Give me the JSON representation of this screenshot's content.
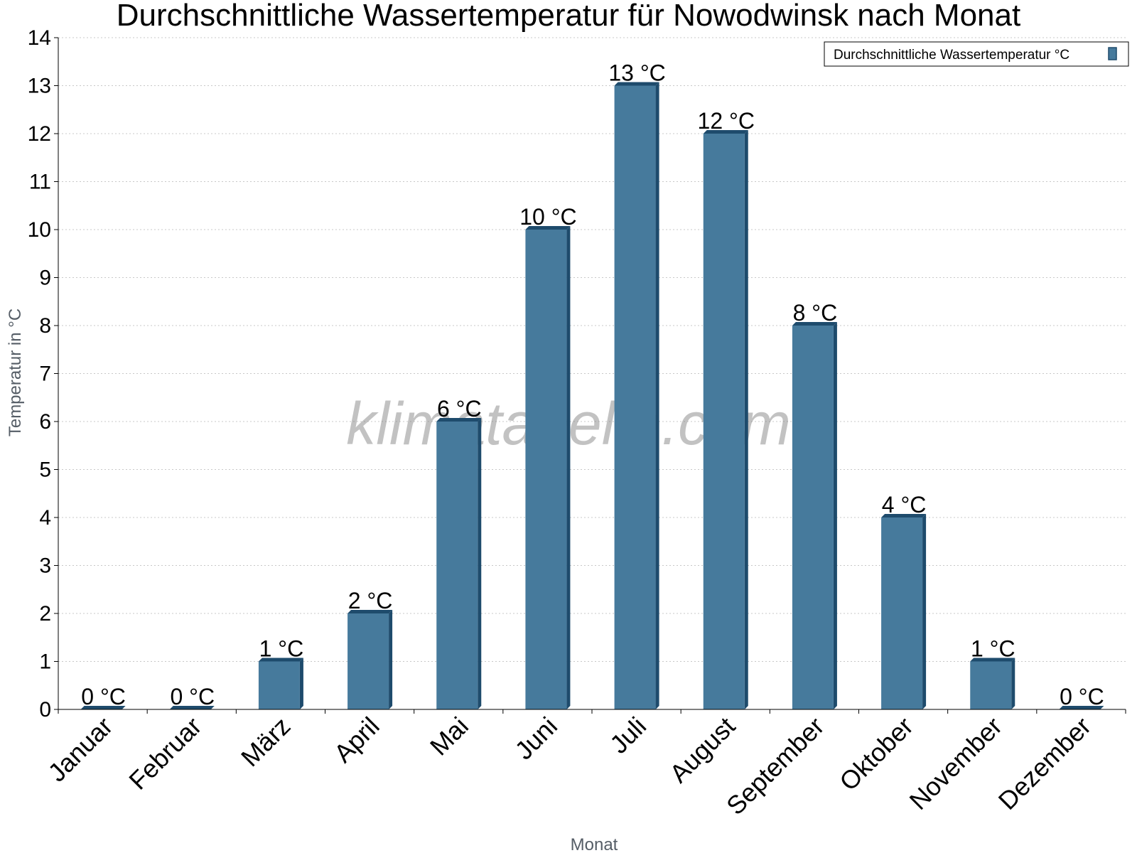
{
  "chart_data": {
    "type": "bar",
    "title": "Durchschnittliche Wassertemperatur für Nowodwinsk nach Monat",
    "xlabel": "Monat",
    "ylabel": "Temperatur in °C",
    "categories": [
      "Januar",
      "Februar",
      "März",
      "April",
      "Mai",
      "Juni",
      "Juli",
      "August",
      "September",
      "Oktober",
      "November",
      "Dezember"
    ],
    "series": [
      {
        "name": "Durchschnittliche Wassertemperatur °C",
        "values": [
          0,
          0,
          1,
          2,
          6,
          10,
          13,
          12,
          8,
          4,
          1,
          0
        ],
        "labels": [
          "0 °C",
          "0 °C",
          "1 °C",
          "2 °C",
          "6 °C",
          "10 °C",
          "13 °C",
          "12 °C",
          "8 °C",
          "4 °C",
          "1 °C",
          "0 °C"
        ]
      }
    ],
    "yticks": [
      "0",
      "1",
      "2",
      "3",
      "4",
      "5",
      "6",
      "7",
      "8",
      "9",
      "10",
      "11",
      "12",
      "13",
      "14"
    ],
    "ylim": [
      0,
      14
    ],
    "grid": true,
    "legend_position": "top-right",
    "bar_color": "#467a9c",
    "bar_side_color": "#1e4b6c",
    "watermark": "klimatabelle.com"
  }
}
